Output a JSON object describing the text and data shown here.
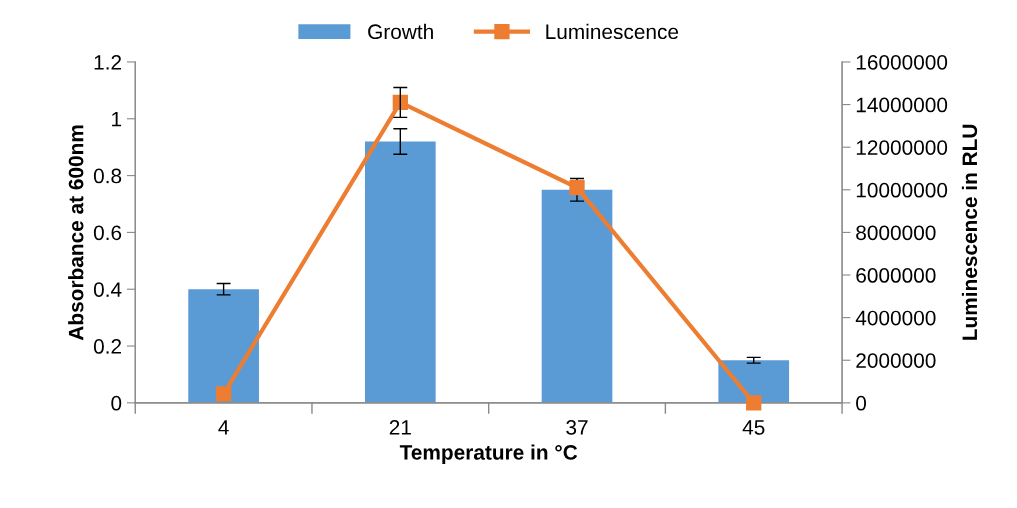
{
  "chart_data": {
    "type": "bar",
    "categories": [
      "4",
      "21",
      "37",
      "45"
    ],
    "xlabel": "Temperature in °C",
    "ylabel": "Absorbance at 600nm",
    "y2label": "Luminescence in RLU",
    "series": [
      {
        "name": "Growth",
        "color": "#5b9bd5",
        "values": [
          0.4,
          0.92,
          0.75,
          0.15
        ],
        "errors": [
          0.02,
          0.045,
          0.04,
          0.01
        ]
      },
      {
        "name": "Luminescence",
        "type": "line",
        "axis": "y2",
        "color": "#ed7d31",
        "values": [
          420000,
          14100000,
          10100000,
          0
        ],
        "errors": [
          null,
          700000,
          null,
          null
        ]
      }
    ],
    "ylim": [
      0,
      1.2
    ],
    "yticks": [
      0,
      0.2,
      0.4,
      0.6,
      0.8,
      1,
      1.2
    ],
    "y2lim": [
      0,
      16000000
    ],
    "y2ticks": [
      0,
      2000000,
      4000000,
      6000000,
      8000000,
      10000000,
      12000000,
      14000000,
      16000000
    ],
    "legend": "top",
    "grid": false,
    "marker": "square",
    "line_style": "solid"
  }
}
